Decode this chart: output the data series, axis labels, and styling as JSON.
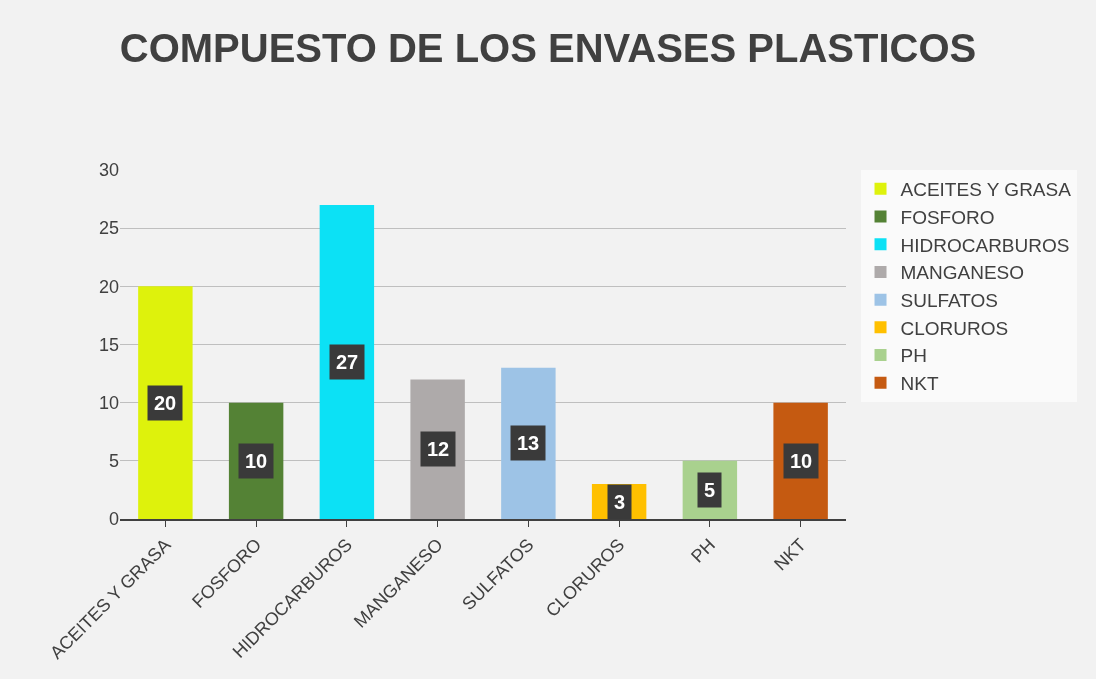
{
  "chart_data": {
    "type": "bar",
    "title": "COMPUESTO DE LOS ENVASES PLASTICOS",
    "categories": [
      "ACEITES Y GRASA",
      "FOSFORO",
      "HIDROCARBUROS",
      "MANGANESO",
      "SULFATOS",
      "CLORUROS",
      "PH",
      "NKT"
    ],
    "series": [
      {
        "name": "ACEITES Y GRASA",
        "color": "#def20c",
        "values": [
          20,
          null,
          null,
          null,
          null,
          null,
          null,
          null
        ]
      },
      {
        "name": "FOSFORO",
        "color": "#548235",
        "values": [
          null,
          10,
          null,
          null,
          null,
          null,
          null,
          null
        ]
      },
      {
        "name": "HIDROCARBUROS",
        "color": "#0ce1f5",
        "values": [
          null,
          null,
          27,
          null,
          null,
          null,
          null,
          null
        ]
      },
      {
        "name": "MANGANESO",
        "color": "#aeaaaa",
        "values": [
          null,
          null,
          null,
          12,
          null,
          null,
          null,
          null
        ]
      },
      {
        "name": "SULFATOS",
        "color": "#9dc3e6",
        "values": [
          null,
          null,
          null,
          null,
          13,
          null,
          null,
          null
        ]
      },
      {
        "name": "CLORUROS",
        "color": "#ffc000",
        "values": [
          null,
          null,
          null,
          null,
          null,
          3,
          null,
          null
        ]
      },
      {
        "name": "PH",
        "color": "#a9d18e",
        "values": [
          null,
          null,
          null,
          null,
          null,
          null,
          5,
          null
        ]
      },
      {
        "name": "NKT",
        "color": "#c55a11",
        "values": [
          null,
          null,
          null,
          null,
          null,
          null,
          null,
          10
        ]
      }
    ],
    "ylim": [
      0,
      30
    ],
    "yticks": [
      0,
      5,
      10,
      15,
      20,
      25,
      30
    ],
    "grid": "y",
    "legend": "right",
    "data_labels": true
  }
}
